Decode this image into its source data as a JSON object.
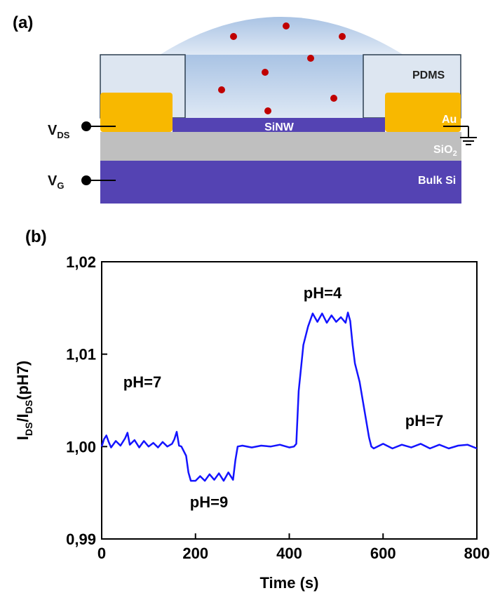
{
  "panel_a": {
    "label": "(a)",
    "pdms": "PDMS",
    "au": "Au",
    "sinw": "SiNW",
    "sio2": [
      "SiO",
      "2"
    ],
    "bulk_si": "Bulk Si",
    "v_ds": [
      "V",
      "DS"
    ],
    "v_g": [
      "V",
      "G"
    ]
  },
  "chart_data": {
    "type": "line",
    "panel_label": "(b)",
    "xlabel": "Time (s)",
    "ylabel": [
      "I",
      "DS",
      "/I",
      "DS",
      "(pH7)"
    ],
    "annotations": [
      "pH=7",
      "pH=9",
      "pH=4",
      "pH=7"
    ],
    "xlim": [
      0,
      800
    ],
    "xticks": [
      0,
      200,
      400,
      600,
      800
    ],
    "ylim": [
      0.99,
      1.02
    ],
    "yticks": [
      {
        "value": 0.99,
        "label": "0,99"
      },
      {
        "value": 1.0,
        "label": "1,00"
      },
      {
        "value": 1.01,
        "label": "1,01"
      },
      {
        "value": 1.02,
        "label": "1,02"
      }
    ],
    "x": [
      0,
      5,
      10,
      15,
      20,
      30,
      40,
      50,
      55,
      60,
      70,
      80,
      90,
      100,
      110,
      120,
      130,
      140,
      150,
      155,
      160,
      165,
      170,
      180,
      185,
      190,
      200,
      210,
      220,
      230,
      240,
      250,
      260,
      270,
      280,
      285,
      290,
      300,
      320,
      340,
      360,
      380,
      400,
      410,
      415,
      420,
      430,
      440,
      445,
      450,
      460,
      470,
      480,
      490,
      500,
      510,
      520,
      525,
      530,
      535,
      540,
      550,
      560,
      570,
      575,
      580,
      600,
      620,
      640,
      660,
      680,
      700,
      720,
      740,
      760,
      780,
      800
    ],
    "series": [
      {
        "color": "#1414ff",
        "values": [
          1.0,
          1.0008,
          1.0012,
          1.0005,
          0.9999,
          1.0006,
          1.0001,
          1.0009,
          1.0015,
          1.0002,
          1.0007,
          0.9999,
          1.0006,
          1.0,
          1.0004,
          0.9999,
          1.0005,
          1.0,
          1.0003,
          1.0008,
          1.0016,
          1.0001,
          1.0,
          0.999,
          0.9972,
          0.9963,
          0.9963,
          0.9968,
          0.9963,
          0.997,
          0.9964,
          0.9971,
          0.9963,
          0.9972,
          0.9964,
          0.9985,
          1.0,
          1.0001,
          0.9999,
          1.0001,
          1.0,
          1.0002,
          0.9999,
          1.0,
          1.0003,
          1.006,
          1.011,
          1.013,
          1.0137,
          1.0144,
          1.0135,
          1.0144,
          1.0134,
          1.0142,
          1.0135,
          1.014,
          1.0134,
          1.0145,
          1.0136,
          1.011,
          1.009,
          1.007,
          1.004,
          1.001,
          1.0,
          0.9998,
          1.0003,
          0.9998,
          1.0002,
          0.9999,
          1.0003,
          0.9998,
          1.0002,
          0.9998,
          1.0001,
          1.0002,
          0.9998
        ]
      }
    ]
  }
}
